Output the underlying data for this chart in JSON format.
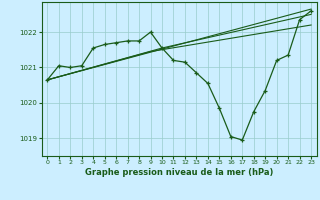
{
  "background_color": "#cceeff",
  "grid_color": "#99cccc",
  "line_color": "#1a5c1a",
  "marker_color": "#1a5c1a",
  "xlabel": "Graphe pression niveau de la mer (hPa)",
  "xlim": [
    -0.5,
    23.5
  ],
  "ylim": [
    1018.5,
    1022.85
  ],
  "yticks": [
    1019,
    1020,
    1021,
    1022
  ],
  "xticks": [
    0,
    1,
    2,
    3,
    4,
    5,
    6,
    7,
    8,
    9,
    10,
    11,
    12,
    13,
    14,
    15,
    16,
    17,
    18,
    19,
    20,
    21,
    22,
    23
  ],
  "series": [
    {
      "x": [
        0,
        1,
        2,
        3,
        4,
        5,
        6,
        7,
        8,
        9,
        10,
        11,
        12,
        13,
        14,
        15,
        16,
        17,
        18,
        19,
        20,
        21,
        22,
        23
      ],
      "y": [
        1020.65,
        1021.05,
        1021.0,
        1021.05,
        1021.55,
        1021.65,
        1021.7,
        1021.75,
        1021.75,
        1022.0,
        1021.55,
        1021.2,
        1021.15,
        1020.85,
        1020.55,
        1019.85,
        1019.05,
        1018.95,
        1019.75,
        1020.35,
        1021.2,
        1021.35,
        1022.35,
        1022.6
      ],
      "marker": true
    },
    {
      "x": [
        0,
        23
      ],
      "y": [
        1020.65,
        1022.65
      ],
      "marker": false
    },
    {
      "x": [
        0,
        9,
        23
      ],
      "y": [
        1020.65,
        1021.45,
        1022.2
      ],
      "marker": false
    },
    {
      "x": [
        0,
        10,
        23
      ],
      "y": [
        1020.65,
        1021.55,
        1022.5
      ],
      "marker": false
    }
  ]
}
